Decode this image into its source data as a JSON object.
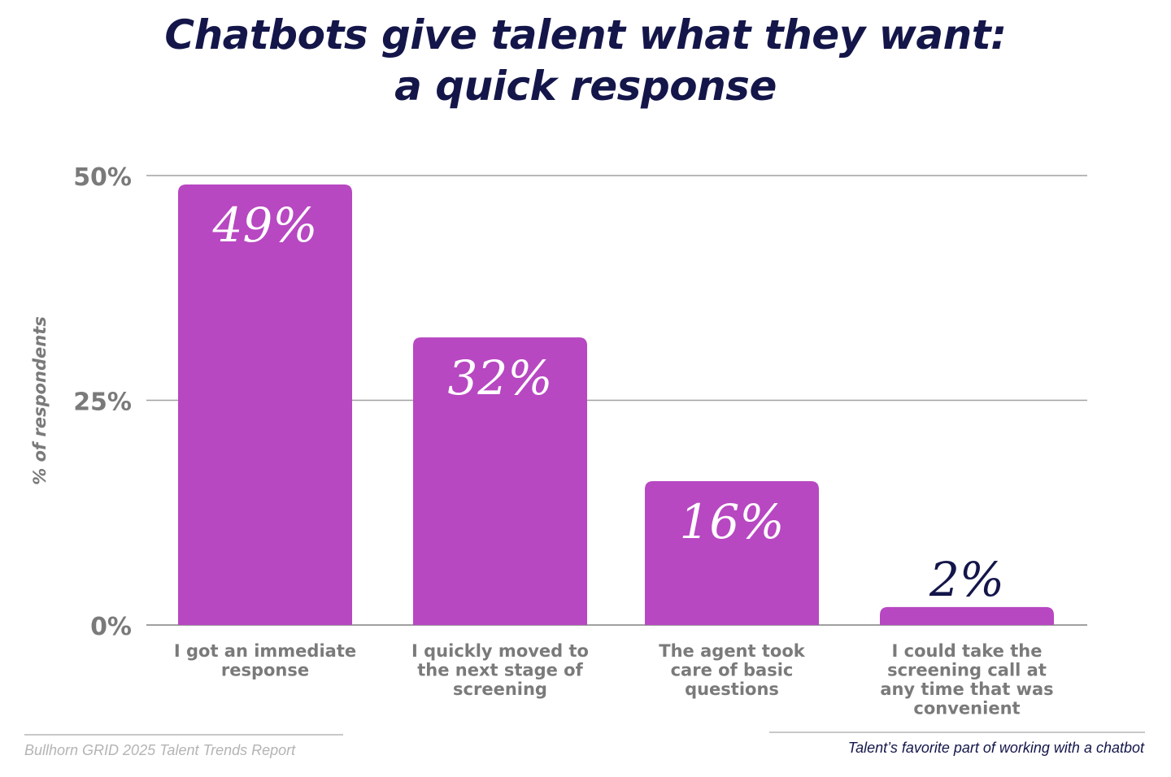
{
  "title": {
    "line1": "Chatbots give talent what they want:",
    "line2": "a quick response"
  },
  "chart_data": {
    "type": "bar",
    "title": "Chatbots give talent what they want: a quick response",
    "xlabel": "",
    "ylabel": "% of respondents",
    "ylim": [
      0,
      50
    ],
    "yticks": [
      0,
      25,
      50
    ],
    "ytick_labels": [
      "0%",
      "25%",
      "50%"
    ],
    "grid": true,
    "categories": [
      [
        "I got an immediate",
        "response"
      ],
      [
        "I quickly moved to",
        "the next stage of",
        "screening"
      ],
      [
        "The agent took",
        "care of basic",
        "questions"
      ],
      [
        "I could take the",
        "screening call at",
        "any time that was",
        "convenient"
      ]
    ],
    "values": [
      49,
      32,
      16,
      2
    ],
    "data_labels": [
      "49%",
      "32%",
      "16%",
      "2%"
    ],
    "bar_color": "#b847c2",
    "label_inside_color": "#ffffff",
    "label_outside_color": "#14164a",
    "tick_color": "#7a7a7a",
    "grid_color": "#a0a0a0"
  },
  "footer": {
    "source": "Bullhorn GRID 2025 Talent Trends Report",
    "caption": "Talent’s favorite part of working with a chatbot"
  }
}
